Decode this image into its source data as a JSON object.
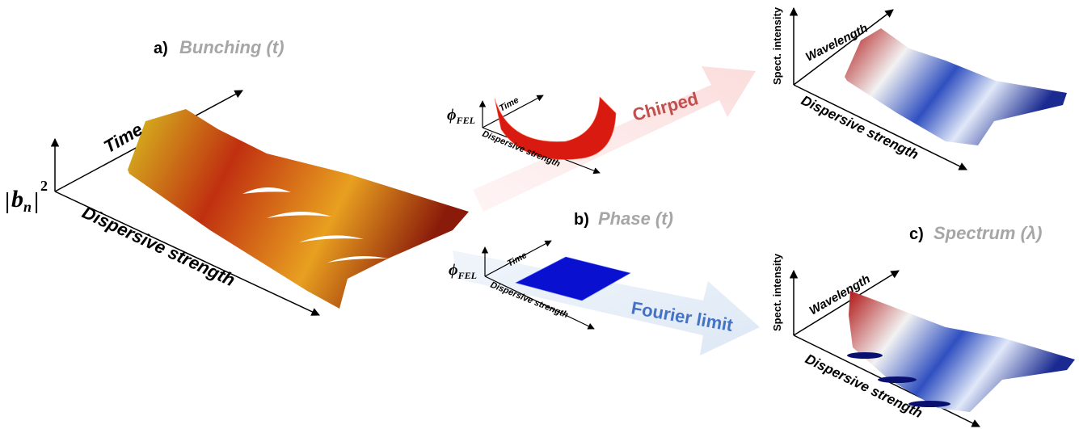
{
  "panel_a": {
    "label": "a)",
    "title": "Bunching (t)",
    "z_axis": {
      "symbol": "b",
      "subscript": "n",
      "superscript": "2"
    },
    "y_axis": "Time",
    "x_axis": "Dispersive strength"
  },
  "panel_b": {
    "label": "b)",
    "title": "Phase (t)",
    "insets": [
      {
        "z_axis": {
          "symbol": "ϕ",
          "subscript": "FEL"
        },
        "y_axis": "Time",
        "x_axis": "Dispersive strength",
        "arrow": "Chirped"
      },
      {
        "z_axis": {
          "symbol": "ϕ",
          "subscript": "FEL"
        },
        "y_axis": "Time",
        "x_axis": "Dispersive strength",
        "arrow": "Fourier limit"
      }
    ]
  },
  "panel_c": {
    "label": "c)",
    "title": "Spectrum (λ)",
    "plots": [
      {
        "z_axis": "Spect. intensity",
        "y_axis": "Wavelength",
        "x_axis": "Dispersive strength"
      },
      {
        "z_axis": "Spect. intensity",
        "y_axis": "Wavelength",
        "x_axis": "Dispersive strength"
      }
    ]
  }
}
